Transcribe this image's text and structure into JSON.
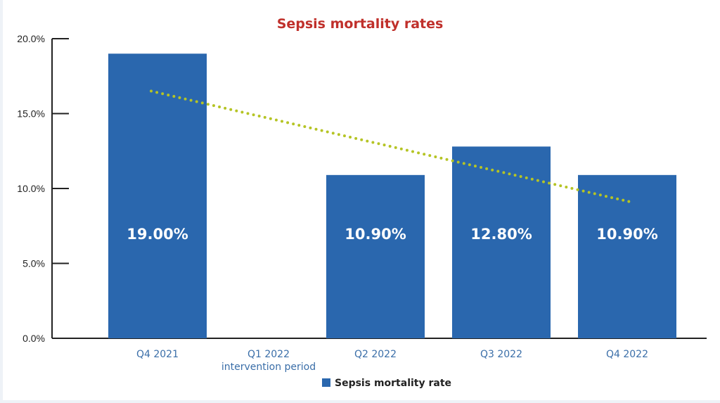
{
  "chart_data": {
    "type": "bar",
    "title": "Sepsis mortality rates",
    "categories": [
      "Q4 2021",
      "Q1 2022\nintervention period",
      "Q2 2022",
      "Q3 2022",
      "Q4 2022"
    ],
    "series": [
      {
        "name": "Sepsis mortality rate",
        "values": [
          19.0,
          null,
          10.9,
          12.8,
          10.9
        ],
        "color": "#2a67ae"
      }
    ],
    "data_labels": [
      "19.00%",
      "",
      "10.90%",
      "12.80%",
      "10.90%"
    ],
    "trendline": {
      "style": "dotted",
      "color": "#b5c424",
      "start_value": 16.5,
      "end_value": 9.1,
      "from_category": "Q4 2021",
      "to_category": "Q4 2022"
    },
    "ylim": [
      0,
      20
    ],
    "yticks": [
      "0.0%",
      "5.0%",
      "10.0%",
      "15.0%",
      "20.0%"
    ],
    "ytick_values": [
      0,
      5,
      10,
      15,
      20
    ],
    "xlabel": "",
    "ylabel": "",
    "grid": false,
    "legend": "bottom",
    "colors": {
      "title": "#c0302b",
      "axis_labels": "#3a6ea8",
      "bars": "#2a67ae",
      "trend": "#b5c424"
    }
  }
}
